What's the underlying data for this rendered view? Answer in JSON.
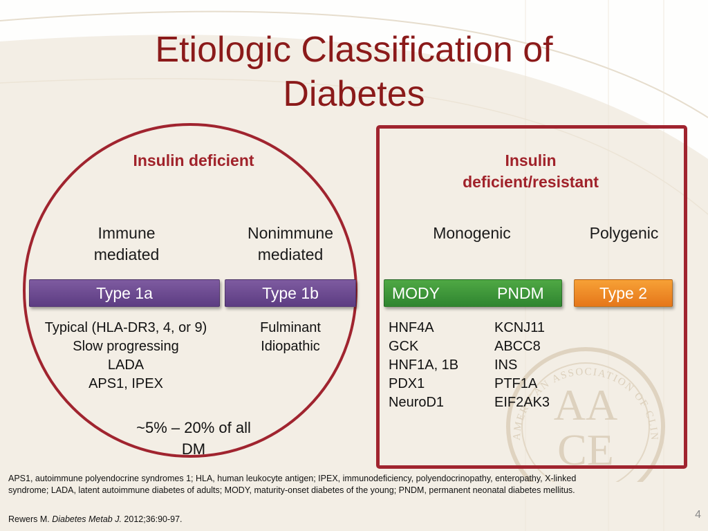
{
  "title": "Etiologic Classification of Diabetes",
  "groups": {
    "deficient": "Insulin deficient",
    "deficient_resistant": "Insulin deficient/resistant"
  },
  "categories": {
    "immune": "Immune mediated",
    "nonimmune": "Nonimmune mediated",
    "monogenic": "Monogenic",
    "polygenic": "Polygenic"
  },
  "bars": {
    "type1a": "Type 1a",
    "type1b": "Type 1b",
    "mody": "MODY",
    "pndm": "PNDM",
    "type2": "Type 2"
  },
  "type1a_items": [
    "Typical (HLA-DR3, 4, or 9)",
    "Slow progressing",
    "LADA",
    "APS1, IPEX"
  ],
  "type1b_items": [
    "Fulminant",
    "Idiopathic"
  ],
  "mody_genes": [
    "HNF4A",
    "GCK",
    "HNF1A, 1B",
    "PDX1",
    "NeuroD1"
  ],
  "pndm_genes": [
    "KCNJ11",
    "ABCC8",
    "INS",
    "PTF1A",
    "EIF2AK3"
  ],
  "percent_note": "~5% – 20% of all DM",
  "footnote": "APS1, autoimmune polyendocrine syndromes 1; HLA, human leukocyte antigen; IPEX, immunodeficiency, polyendocrinopathy, enteropathy, X-linked syndrome; LADA, latent autoimmune diabetes of adults; MODY, maturity-onset diabetes of the young; PNDM, permanent neonatal diabetes mellitus.",
  "citation": {
    "author": "Rewers M. ",
    "journal": "Diabetes Metab J.",
    "details": " 2012;36:90-97."
  },
  "page_number": "4",
  "seal": {
    "ring_text": "AMERICAN ASSOCIATION OF CLINICAL ENDOCRINOLOGISTS",
    "monogram_top": "AA",
    "monogram_bottom": "CE"
  },
  "colors": {
    "title": "#8b1a1a",
    "accent": "#a0242f",
    "purple": "#6a4a8f",
    "green": "#3c963a",
    "orange": "#f08a28"
  }
}
